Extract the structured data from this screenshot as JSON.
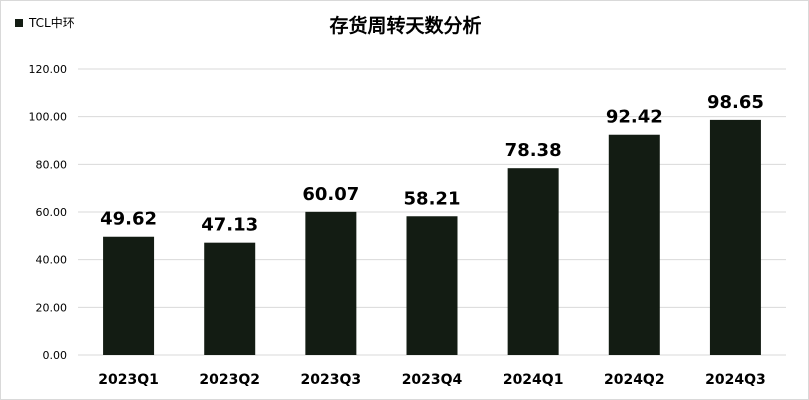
{
  "chart_data": {
    "type": "bar",
    "title": "存货周转天数分析",
    "legend": "TCL中环",
    "legend_position": "top-left",
    "categories": [
      "2023Q1",
      "2023Q2",
      "2023Q3",
      "2023Q4",
      "2024Q1",
      "2024Q2",
      "2024Q3"
    ],
    "series": [
      {
        "name": "TCL中环",
        "values": [
          49.62,
          47.13,
          60.07,
          58.21,
          78.38,
          92.42,
          98.65
        ]
      }
    ],
    "value_labels": [
      "49.62",
      "47.13",
      "60.07",
      "58.21",
      "78.38",
      "92.42",
      "98.65"
    ],
    "ylim": [
      0,
      120
    ],
    "yticks": [
      "0.00",
      "20.00",
      "40.00",
      "60.00",
      "80.00",
      "100.00",
      "120.00"
    ],
    "ytick_values": [
      0,
      20,
      40,
      60,
      80,
      100,
      120
    ],
    "grid": true,
    "bar_color": "#131c13",
    "grid_color": "#d9d9d9"
  }
}
